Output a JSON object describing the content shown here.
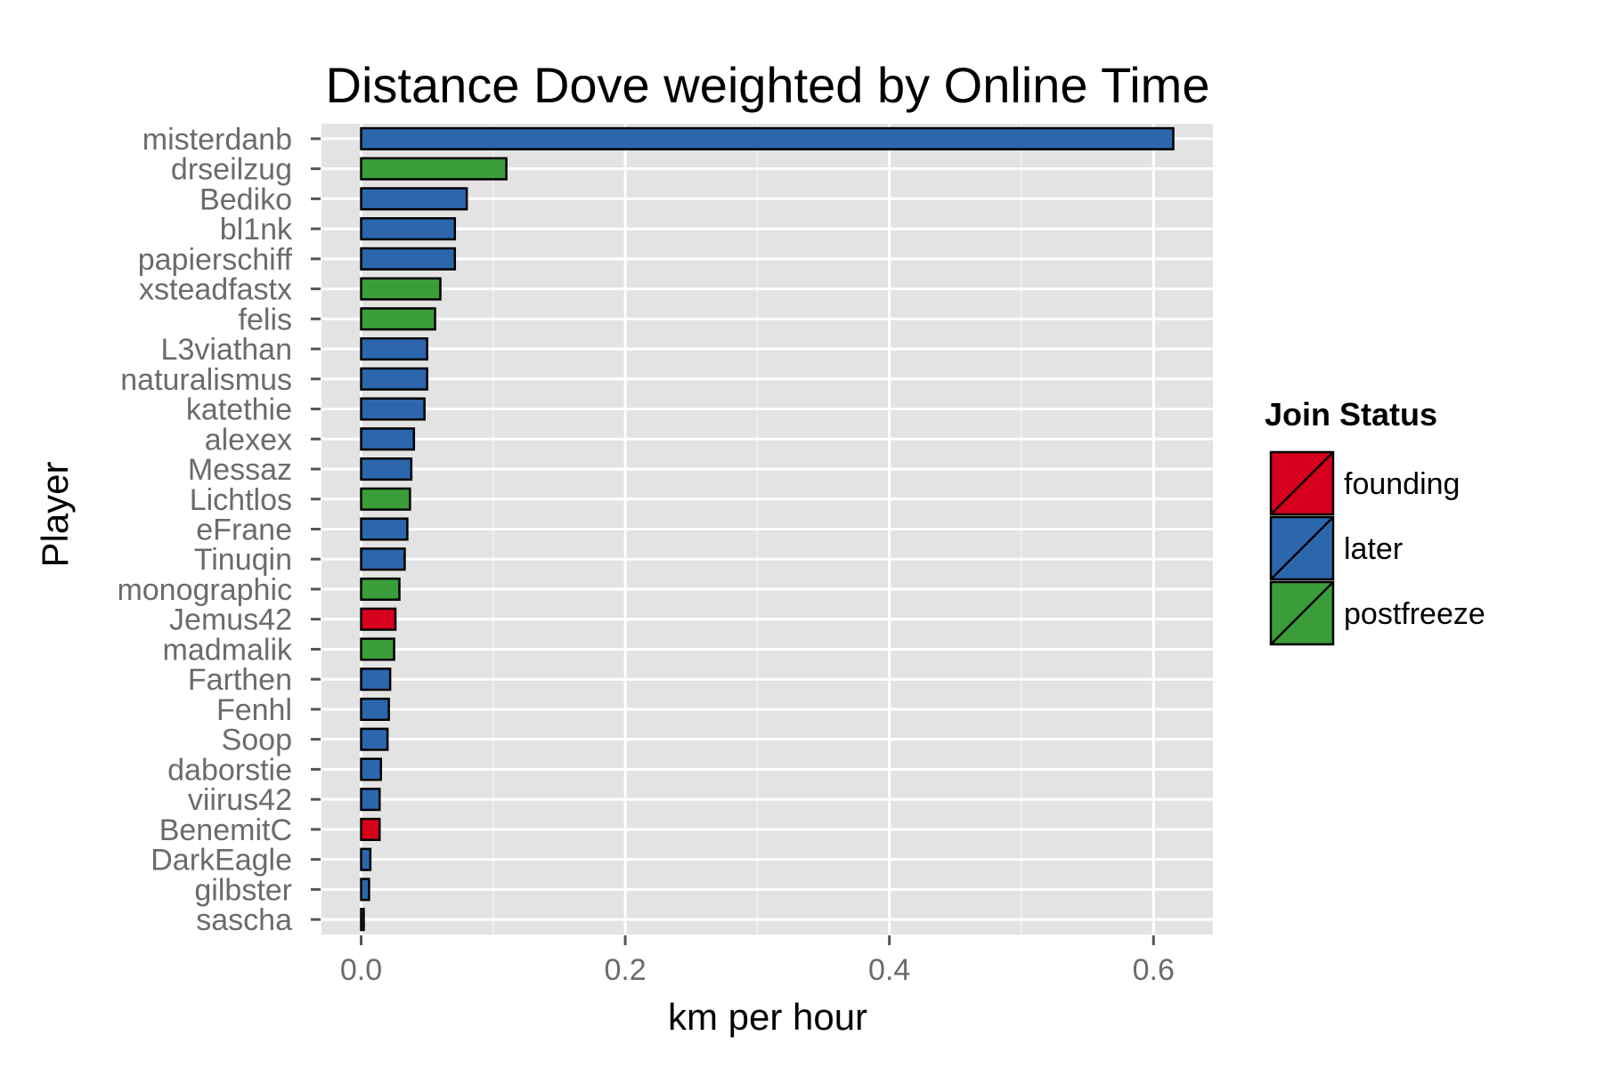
{
  "chart_data": {
    "type": "bar",
    "orientation": "horizontal",
    "title": "Distance Dove weighted by Online Time",
    "xlabel": "km per hour",
    "ylabel": "Player",
    "xlim": [
      -0.03,
      0.645
    ],
    "xticks": [
      0.0,
      0.2,
      0.4,
      0.6
    ],
    "xtick_labels": [
      "0.0",
      "0.2",
      "0.4",
      "0.6"
    ],
    "grid": true,
    "legend": {
      "title": "Join Status",
      "placement": "right",
      "entries": [
        {
          "name": "founding",
          "color": "#d7001c"
        },
        {
          "name": "later",
          "color": "#2c67ad"
        },
        {
          "name": "postfreeze",
          "color": "#3a9d3a"
        }
      ]
    },
    "bars": [
      {
        "player": "misterdanb",
        "value": 0.615,
        "status": "later"
      },
      {
        "player": "drseilzug",
        "value": 0.11,
        "status": "postfreeze"
      },
      {
        "player": "Bediko",
        "value": 0.08,
        "status": "later"
      },
      {
        "player": "bl1nk",
        "value": 0.071,
        "status": "later"
      },
      {
        "player": "papierschiff",
        "value": 0.071,
        "status": "later"
      },
      {
        "player": "xsteadfastx",
        "value": 0.06,
        "status": "postfreeze"
      },
      {
        "player": "felis",
        "value": 0.056,
        "status": "postfreeze"
      },
      {
        "player": "L3viathan",
        "value": 0.05,
        "status": "later"
      },
      {
        "player": "naturalismus",
        "value": 0.05,
        "status": "later"
      },
      {
        "player": "katethie",
        "value": 0.048,
        "status": "later"
      },
      {
        "player": "alexex",
        "value": 0.04,
        "status": "later"
      },
      {
        "player": "Messaz",
        "value": 0.038,
        "status": "later"
      },
      {
        "player": "Lichtlos",
        "value": 0.037,
        "status": "postfreeze"
      },
      {
        "player": "eFrane",
        "value": 0.035,
        "status": "later"
      },
      {
        "player": "Tinuqin",
        "value": 0.033,
        "status": "later"
      },
      {
        "player": "monographic",
        "value": 0.029,
        "status": "postfreeze"
      },
      {
        "player": "Jemus42",
        "value": 0.026,
        "status": "founding"
      },
      {
        "player": "madmalik",
        "value": 0.025,
        "status": "postfreeze"
      },
      {
        "player": "Farthen",
        "value": 0.022,
        "status": "later"
      },
      {
        "player": "Fenhl",
        "value": 0.021,
        "status": "later"
      },
      {
        "player": "Soop",
        "value": 0.02,
        "status": "later"
      },
      {
        "player": "daborstie",
        "value": 0.015,
        "status": "later"
      },
      {
        "player": "viirus42",
        "value": 0.014,
        "status": "later"
      },
      {
        "player": "BenemitC",
        "value": 0.014,
        "status": "founding"
      },
      {
        "player": "DarkEagle",
        "value": 0.007,
        "status": "later"
      },
      {
        "player": "gilbster",
        "value": 0.006,
        "status": "later"
      },
      {
        "player": "sascha",
        "value": 0.002,
        "status": "later"
      }
    ]
  }
}
